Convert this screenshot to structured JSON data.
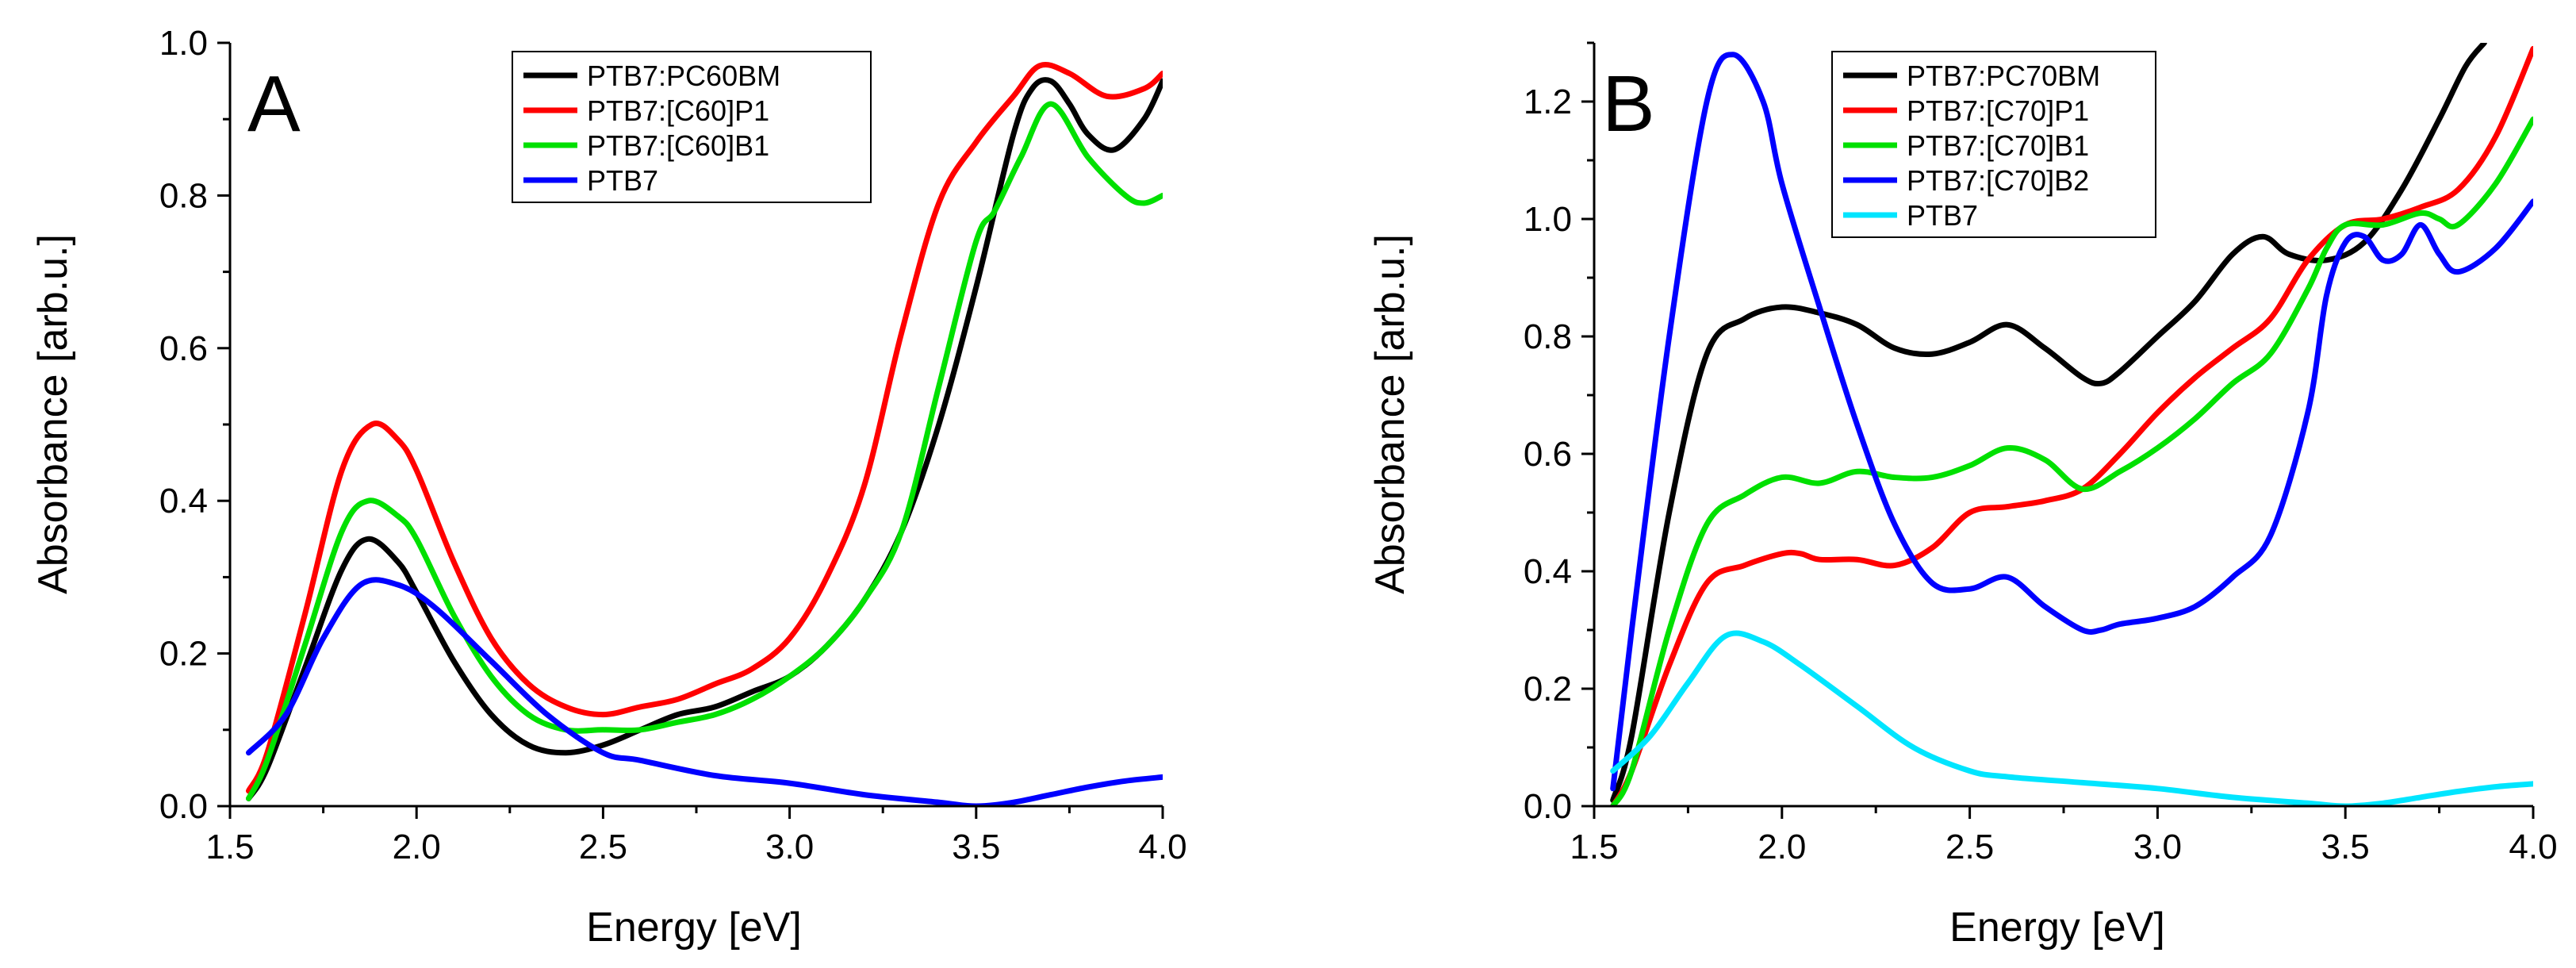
{
  "chart_data": [
    {
      "type": "line",
      "panel_label": "A",
      "xlabel": "Energy [eV]",
      "ylabel": "Absorbance [arb.u.]",
      "xlim": [
        1.5,
        4.0
      ],
      "ylim": [
        0.0,
        1.0
      ],
      "xticks": [
        1.5,
        2.0,
        2.5,
        3.0,
        3.5,
        4.0
      ],
      "xtick_labels": [
        "1.5",
        "2.0",
        "2.5",
        "3.0",
        "3.5",
        "4.0"
      ],
      "yticks": [
        0.0,
        0.2,
        0.4,
        0.6,
        0.8,
        1.0
      ],
      "ytick_labels": [
        "0.0",
        "0.2",
        "0.4",
        "0.6",
        "0.8",
        "1.0"
      ],
      "legend_position": "top-right",
      "series": [
        {
          "name": "PTB7:PC60BM",
          "color": "#000000",
          "x": [
            1.55,
            1.6,
            1.7,
            1.8,
            1.87,
            1.95,
            2.0,
            2.1,
            2.2,
            2.3,
            2.4,
            2.5,
            2.6,
            2.7,
            2.8,
            2.9,
            3.0,
            3.1,
            3.2,
            3.3,
            3.4,
            3.5,
            3.6,
            3.65,
            3.7,
            3.75,
            3.8,
            3.87,
            3.95,
            4.0
          ],
          "y": [
            0.01,
            0.05,
            0.18,
            0.31,
            0.35,
            0.32,
            0.28,
            0.19,
            0.12,
            0.08,
            0.07,
            0.08,
            0.1,
            0.12,
            0.13,
            0.15,
            0.17,
            0.21,
            0.27,
            0.36,
            0.5,
            0.68,
            0.88,
            0.94,
            0.95,
            0.92,
            0.88,
            0.86,
            0.9,
            0.95
          ]
        },
        {
          "name": "PTB7:[C60]P1",
          "color": "#ff0000",
          "x": [
            1.55,
            1.6,
            1.7,
            1.8,
            1.88,
            1.95,
            2.0,
            2.1,
            2.2,
            2.3,
            2.4,
            2.5,
            2.6,
            2.7,
            2.8,
            2.9,
            3.0,
            3.1,
            3.2,
            3.3,
            3.4,
            3.5,
            3.6,
            3.67,
            3.75,
            3.85,
            3.95,
            4.0
          ],
          "y": [
            0.02,
            0.07,
            0.25,
            0.44,
            0.5,
            0.48,
            0.44,
            0.32,
            0.22,
            0.16,
            0.13,
            0.12,
            0.13,
            0.14,
            0.16,
            0.18,
            0.22,
            0.3,
            0.42,
            0.62,
            0.79,
            0.87,
            0.93,
            0.97,
            0.96,
            0.93,
            0.94,
            0.96
          ]
        },
        {
          "name": "PTB7:[C60]B1",
          "color": "#00e000",
          "x": [
            1.55,
            1.6,
            1.7,
            1.8,
            1.87,
            1.95,
            2.0,
            2.1,
            2.2,
            2.3,
            2.4,
            2.5,
            2.6,
            2.7,
            2.8,
            2.9,
            3.0,
            3.1,
            3.2,
            3.3,
            3.4,
            3.5,
            3.55,
            3.62,
            3.7,
            3.8,
            3.9,
            3.95,
            4.0
          ],
          "y": [
            0.01,
            0.06,
            0.21,
            0.36,
            0.4,
            0.38,
            0.35,
            0.25,
            0.17,
            0.12,
            0.1,
            0.1,
            0.1,
            0.11,
            0.12,
            0.14,
            0.17,
            0.21,
            0.27,
            0.36,
            0.55,
            0.74,
            0.78,
            0.85,
            0.92,
            0.85,
            0.8,
            0.79,
            0.8
          ]
        },
        {
          "name": "PTB7",
          "color": "#0000ff",
          "x": [
            1.55,
            1.65,
            1.75,
            1.85,
            1.95,
            2.05,
            2.2,
            2.35,
            2.5,
            2.6,
            2.8,
            3.0,
            3.2,
            3.4,
            3.5,
            3.6,
            3.7,
            3.8,
            3.9,
            4.0
          ],
          "y": [
            0.07,
            0.12,
            0.22,
            0.29,
            0.29,
            0.26,
            0.19,
            0.12,
            0.07,
            0.06,
            0.04,
            0.03,
            0.015,
            0.005,
            0.0,
            0.005,
            0.015,
            0.025,
            0.033,
            0.038
          ]
        }
      ]
    },
    {
      "type": "line",
      "panel_label": "B",
      "xlabel": "Energy [eV]",
      "ylabel": "Absorbance [arb.u.]",
      "xlim": [
        1.5,
        4.0
      ],
      "ylim": [
        0.0,
        1.3
      ],
      "xticks": [
        1.5,
        2.0,
        2.5,
        3.0,
        3.5,
        4.0
      ],
      "xtick_labels": [
        "1.5",
        "2.0",
        "2.5",
        "3.0",
        "3.5",
        "4.0"
      ],
      "yticks": [
        0.0,
        0.2,
        0.4,
        0.6,
        0.8,
        1.0,
        1.2
      ],
      "ytick_labels": [
        "0.0",
        "0.2",
        "0.4",
        "0.6",
        "0.8",
        "1.0",
        "1.2"
      ],
      "legend_position": "top-right",
      "series": [
        {
          "name": "PTB7:PC70BM",
          "color": "#000000",
          "x": [
            1.55,
            1.6,
            1.7,
            1.8,
            1.9,
            2.0,
            2.1,
            2.2,
            2.3,
            2.4,
            2.5,
            2.6,
            2.7,
            2.8,
            2.85,
            2.9,
            3.0,
            3.1,
            3.2,
            3.28,
            3.35,
            3.45,
            3.55,
            3.65,
            3.75,
            3.82,
            3.87
          ],
          "y": [
            0.01,
            0.12,
            0.5,
            0.77,
            0.83,
            0.85,
            0.84,
            0.82,
            0.78,
            0.77,
            0.79,
            0.82,
            0.78,
            0.73,
            0.72,
            0.74,
            0.8,
            0.86,
            0.94,
            0.97,
            0.94,
            0.93,
            0.96,
            1.05,
            1.17,
            1.26,
            1.3
          ]
        },
        {
          "name": "PTB7:[C70]P1",
          "color": "#ff0000",
          "x": [
            1.55,
            1.6,
            1.7,
            1.8,
            1.9,
            2.0,
            2.05,
            2.1,
            2.2,
            2.3,
            2.4,
            2.5,
            2.6,
            2.7,
            2.8,
            2.9,
            3.0,
            3.1,
            3.2,
            3.3,
            3.4,
            3.5,
            3.6,
            3.7,
            3.8,
            3.9,
            4.0
          ],
          "y": [
            0.0,
            0.06,
            0.24,
            0.38,
            0.41,
            0.43,
            0.43,
            0.42,
            0.42,
            0.41,
            0.44,
            0.5,
            0.51,
            0.52,
            0.54,
            0.6,
            0.67,
            0.73,
            0.78,
            0.83,
            0.93,
            0.99,
            1.0,
            1.02,
            1.05,
            1.14,
            1.29
          ]
        },
        {
          "name": "PTB7:[C70]B1",
          "color": "#00e000",
          "x": [
            1.55,
            1.6,
            1.7,
            1.8,
            1.9,
            2.0,
            2.1,
            2.2,
            2.3,
            2.4,
            2.5,
            2.6,
            2.7,
            2.8,
            2.9,
            3.0,
            3.1,
            3.2,
            3.3,
            3.4,
            3.45,
            3.5,
            3.6,
            3.7,
            3.75,
            3.8,
            3.9,
            4.0
          ],
          "y": [
            0.0,
            0.06,
            0.3,
            0.48,
            0.53,
            0.56,
            0.55,
            0.57,
            0.56,
            0.56,
            0.58,
            0.61,
            0.59,
            0.54,
            0.57,
            0.61,
            0.66,
            0.72,
            0.77,
            0.88,
            0.95,
            0.99,
            0.99,
            1.01,
            1.0,
            0.99,
            1.06,
            1.17
          ]
        },
        {
          "name": "PTB7:[C70]B2",
          "color": "#0000ff",
          "x": [
            1.55,
            1.6,
            1.7,
            1.8,
            1.87,
            1.95,
            2.0,
            2.1,
            2.2,
            2.3,
            2.4,
            2.5,
            2.6,
            2.7,
            2.8,
            2.85,
            2.9,
            3.0,
            3.1,
            3.2,
            3.3,
            3.4,
            3.45,
            3.5,
            3.55,
            3.6,
            3.65,
            3.7,
            3.75,
            3.8,
            3.9,
            4.0
          ],
          "y": [
            0.03,
            0.3,
            0.8,
            1.2,
            1.28,
            1.2,
            1.06,
            0.85,
            0.65,
            0.48,
            0.38,
            0.37,
            0.39,
            0.34,
            0.3,
            0.3,
            0.31,
            0.32,
            0.34,
            0.39,
            0.46,
            0.67,
            0.87,
            0.96,
            0.97,
            0.93,
            0.94,
            0.99,
            0.94,
            0.91,
            0.95,
            1.03
          ]
        },
        {
          "name": "PTB7",
          "color": "#00e5ff",
          "x": [
            1.55,
            1.65,
            1.75,
            1.85,
            1.95,
            2.05,
            2.2,
            2.35,
            2.5,
            2.6,
            2.8,
            3.0,
            3.2,
            3.4,
            3.5,
            3.6,
            3.7,
            3.8,
            3.9,
            4.0
          ],
          "y": [
            0.06,
            0.12,
            0.21,
            0.29,
            0.28,
            0.24,
            0.17,
            0.1,
            0.06,
            0.05,
            0.04,
            0.03,
            0.015,
            0.005,
            0.0,
            0.005,
            0.015,
            0.025,
            0.033,
            0.038
          ]
        }
      ]
    }
  ]
}
